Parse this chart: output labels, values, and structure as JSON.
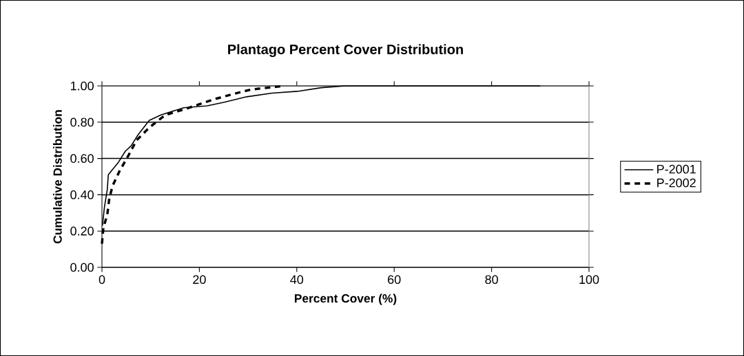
{
  "chart_data": {
    "type": "line",
    "title": "Plantago Percent Cover Distribution",
    "xlabel": "Percent Cover (%)",
    "ylabel": "Cumulative Distribution",
    "xlim": [
      0,
      100
    ],
    "xticks": [
      0,
      20,
      40,
      60,
      80,
      100
    ],
    "ylim": [
      0,
      1
    ],
    "yticks": [
      {
        "value": 0,
        "label": "0.00"
      },
      {
        "value": 0.2,
        "label": "0.20"
      },
      {
        "value": 0.4,
        "label": "0.40"
      },
      {
        "value": 0.6,
        "label": "0.60"
      },
      {
        "value": 0.8,
        "label": "0.80"
      },
      {
        "value": 1,
        "label": "1.00"
      }
    ],
    "grid": "y",
    "legend": "right",
    "marker": "none",
    "series": [
      {
        "name": "P-2001",
        "color": "#000000",
        "line_style": "solid",
        "x": [
          0.1,
          0.5,
          1.1,
          1.3,
          1.9,
          3.4,
          4.8,
          6.0,
          7.4,
          9.7,
          12.1,
          16.8,
          21.6,
          25.1,
          29.7,
          34.9,
          40.1,
          45.0,
          49.9,
          70,
          90
        ],
        "values": [
          0.23,
          0.33,
          0.43,
          0.51,
          0.53,
          0.58,
          0.64,
          0.67,
          0.73,
          0.81,
          0.84,
          0.88,
          0.89,
          0.91,
          0.94,
          0.96,
          0.97,
          0.99,
          1.0,
          1.0,
          1.0
        ]
      },
      {
        "name": "P-2002",
        "color": "#000000",
        "line_style": "dashed",
        "x": [
          0.0,
          0.3,
          1.1,
          1.5,
          2.2,
          3.6,
          5.5,
          7.1,
          9.7,
          13.0,
          16.8,
          20.1,
          23.5,
          27.6,
          30.6,
          34.1,
          37.4
        ],
        "values": [
          0.13,
          0.22,
          0.29,
          0.38,
          0.45,
          0.53,
          0.62,
          0.7,
          0.77,
          0.84,
          0.87,
          0.9,
          0.93,
          0.96,
          0.98,
          0.99,
          1.0
        ]
      }
    ]
  }
}
